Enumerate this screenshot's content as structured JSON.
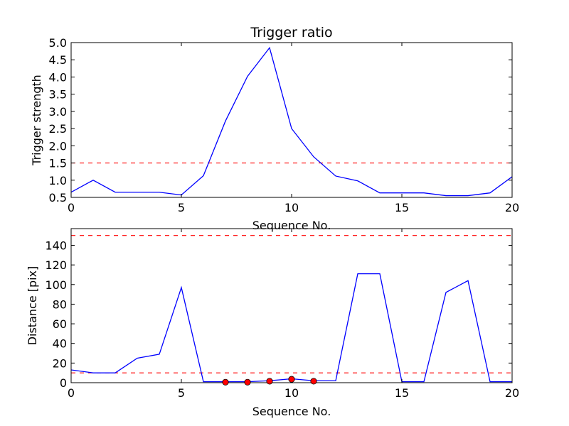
{
  "chart_data": [
    {
      "type": "line",
      "title": "Trigger ratio",
      "xlabel": "Sequence No.",
      "ylabel": "Trigger strength",
      "xlim": [
        0,
        20
      ],
      "ylim": [
        0.5,
        5.0
      ],
      "xticks": [
        0,
        5,
        10,
        15,
        20
      ],
      "xtick_labels": [
        "0",
        "5",
        "10",
        "15",
        "20"
      ],
      "yticks": [
        0.5,
        1.0,
        1.5,
        2.0,
        2.5,
        3.0,
        3.5,
        4.0,
        4.5,
        5.0
      ],
      "ytick_labels": [
        "0.5",
        "1.0",
        "1.5",
        "2.0",
        "2.5",
        "3.0",
        "3.5",
        "4.0",
        "4.5",
        "5.0"
      ],
      "grid": false,
      "series": [
        {
          "style": "solid",
          "color": "#0000ff",
          "x": [
            0,
            1,
            2,
            3,
            4,
            5,
            6,
            7,
            8,
            9,
            10,
            11,
            12,
            13,
            14,
            15,
            16,
            17,
            18,
            19,
            20
          ],
          "values": [
            0.65,
            1.0,
            0.65,
            0.65,
            0.65,
            0.57,
            1.13,
            2.72,
            4.02,
            4.85,
            2.5,
            1.68,
            1.12,
            0.98,
            0.63,
            0.63,
            0.63,
            0.55,
            0.55,
            0.63,
            1.1
          ]
        }
      ],
      "reference_lines": [
        {
          "y": 1.5,
          "color": "#ff0000",
          "style": "dashed"
        }
      ]
    },
    {
      "type": "line",
      "title": "",
      "xlabel": "Sequence No.",
      "ylabel": "Distance [pix]",
      "xlim": [
        0,
        20
      ],
      "ylim": [
        0,
        157
      ],
      "xticks": [
        0,
        5,
        10,
        15,
        20
      ],
      "xtick_labels": [
        "0",
        "5",
        "10",
        "15",
        "20"
      ],
      "yticks": [
        0,
        20,
        40,
        60,
        80,
        100,
        120,
        140
      ],
      "ytick_labels": [
        "0",
        "20",
        "40",
        "60",
        "80",
        "100",
        "120",
        "140"
      ],
      "grid": false,
      "series": [
        {
          "style": "solid",
          "color": "#0000ff",
          "x": [
            0,
            1,
            2,
            3,
            4,
            5,
            6,
            7,
            8,
            9,
            10,
            11,
            12,
            13,
            14,
            15,
            16,
            17,
            18,
            19,
            20
          ],
          "values": [
            13,
            10,
            10,
            25,
            29,
            97,
            1,
            1,
            1,
            2,
            4,
            2,
            2,
            111,
            111,
            1,
            1,
            92,
            104,
            1,
            1
          ]
        },
        {
          "style": "markers",
          "color": "#ff0000",
          "x": [
            7,
            8,
            9,
            10,
            11
          ],
          "values": [
            0.5,
            0.5,
            1.5,
            3.5,
            1.5
          ]
        }
      ],
      "reference_lines": [
        {
          "y": 150,
          "color": "#ff0000",
          "style": "dashed"
        },
        {
          "y": 10,
          "color": "#ff0000",
          "style": "dashed"
        }
      ]
    }
  ]
}
